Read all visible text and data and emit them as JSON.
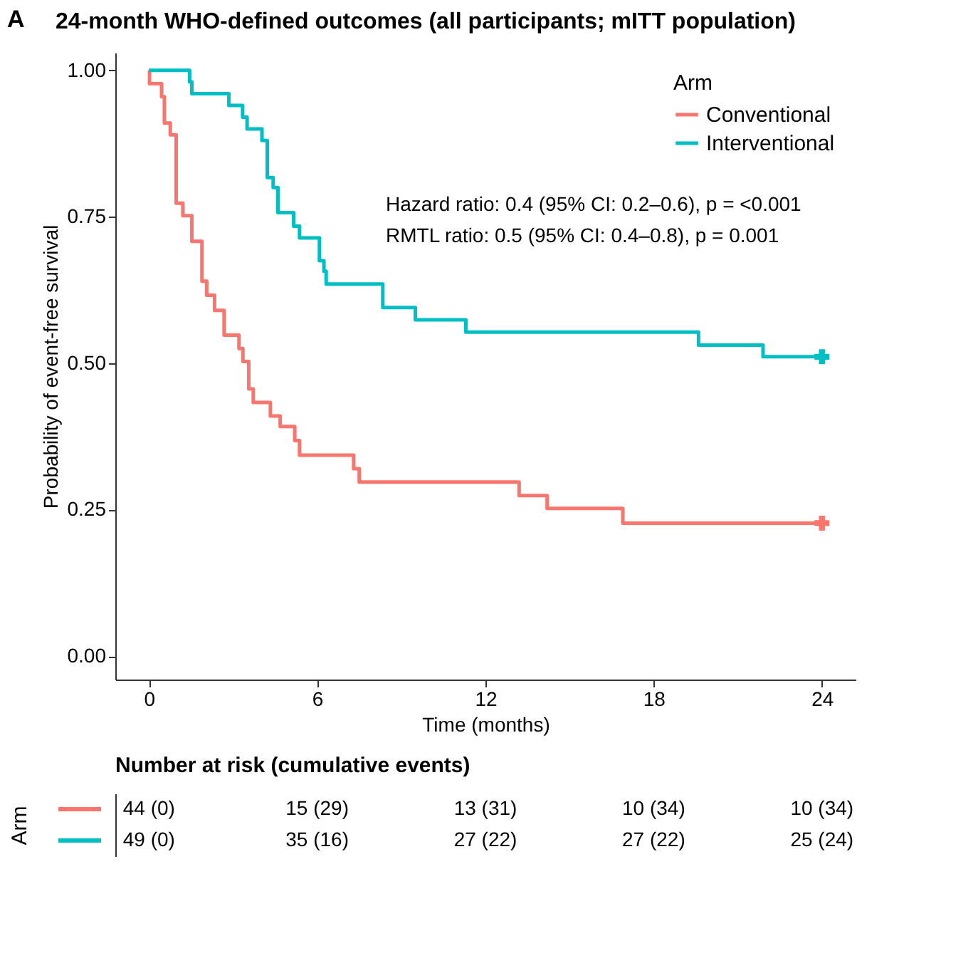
{
  "chart_data": [
    {
      "type": "step",
      "title": "24-month WHO-defined outcomes (all participants; mITT population)",
      "xlabel": "Time (months)",
      "ylabel": "Probability of event-free survival",
      "legend_title": "Arm",
      "legend": "top right",
      "grid": false,
      "line_style": "solid",
      "xlim": [
        -1.2,
        25.2
      ],
      "xticks": [
        0,
        6,
        12,
        18,
        24
      ],
      "ylim": [
        -0.04,
        1.03
      ],
      "yticks": [
        {
          "value": 0,
          "label": "0.00"
        },
        {
          "value": 0.25,
          "label": "0.25"
        },
        {
          "value": 0.5,
          "label": "0.50"
        },
        {
          "value": 0.75,
          "label": "0.75"
        },
        {
          "value": 1,
          "label": "1.00"
        }
      ],
      "annotations": [
        "A",
        "Hazard ratio: 0.4 (95% CI: 0.2–0.6), p = <0.001",
        "RMTL ratio: 0.5 (95% CI: 0.4–0.8), p = 0.001"
      ],
      "series": [
        {
          "name": "Conventional",
          "color": "#f8766d",
          "x": [
            0,
            0.02,
            0.45,
            0.55,
            0.76,
            0.97,
            1.21,
            1.53,
            1.89,
            2.06,
            2.34,
            2.68,
            3.21,
            3.35,
            3.56,
            3.72,
            4.33,
            4.68,
            5.2,
            5.37,
            7.3,
            7.5,
            13.2,
            14.2,
            16.9,
            24
          ],
          "values": [
            1,
            0.977,
            0.955,
            0.91,
            0.89,
            0.773,
            0.752,
            0.708,
            0.64,
            0.616,
            0.59,
            0.548,
            0.525,
            0.503,
            0.456,
            0.433,
            0.41,
            0.392,
            0.368,
            0.343,
            0.32,
            0.297,
            0.274,
            0.252,
            0.227,
            0.227
          ]
        },
        {
          "name": "Interventional",
          "color": "#00bfc4",
          "x": [
            0,
            1.45,
            1.53,
            2.85,
            3.34,
            3.5,
            4.03,
            4.22,
            4.43,
            4.6,
            5.16,
            5.37,
            6.08,
            6.24,
            6.32,
            8.34,
            9.5,
            11.3,
            19.6,
            21.9,
            24
          ],
          "values": [
            1,
            0.98,
            0.96,
            0.94,
            0.92,
            0.9,
            0.88,
            0.817,
            0.8,
            0.757,
            0.734,
            0.714,
            0.675,
            0.657,
            0.635,
            0.595,
            0.574,
            0.553,
            0.531,
            0.511,
            0.511
          ]
        },
        {
          "type": "scatter",
          "marker": "cross",
          "color": "#f8766d",
          "x": [
            24
          ],
          "values": [
            0.227
          ]
        },
        {
          "type": "scatter",
          "marker": "cross",
          "color": "#00bfc4",
          "x": [
            24
          ],
          "values": [
            0.511
          ]
        }
      ]
    },
    {
      "type": "other",
      "title": "Number at risk (cumulative events)",
      "ylabel": "Arm",
      "annotations": [
        "44 (0)",
        "15 (29)",
        "13 (31)",
        "10 (34)",
        "10 (34)",
        "49 (0)",
        "35 (16)",
        "27 (22)",
        "27 (22)",
        "25 (24)"
      ]
    }
  ]
}
